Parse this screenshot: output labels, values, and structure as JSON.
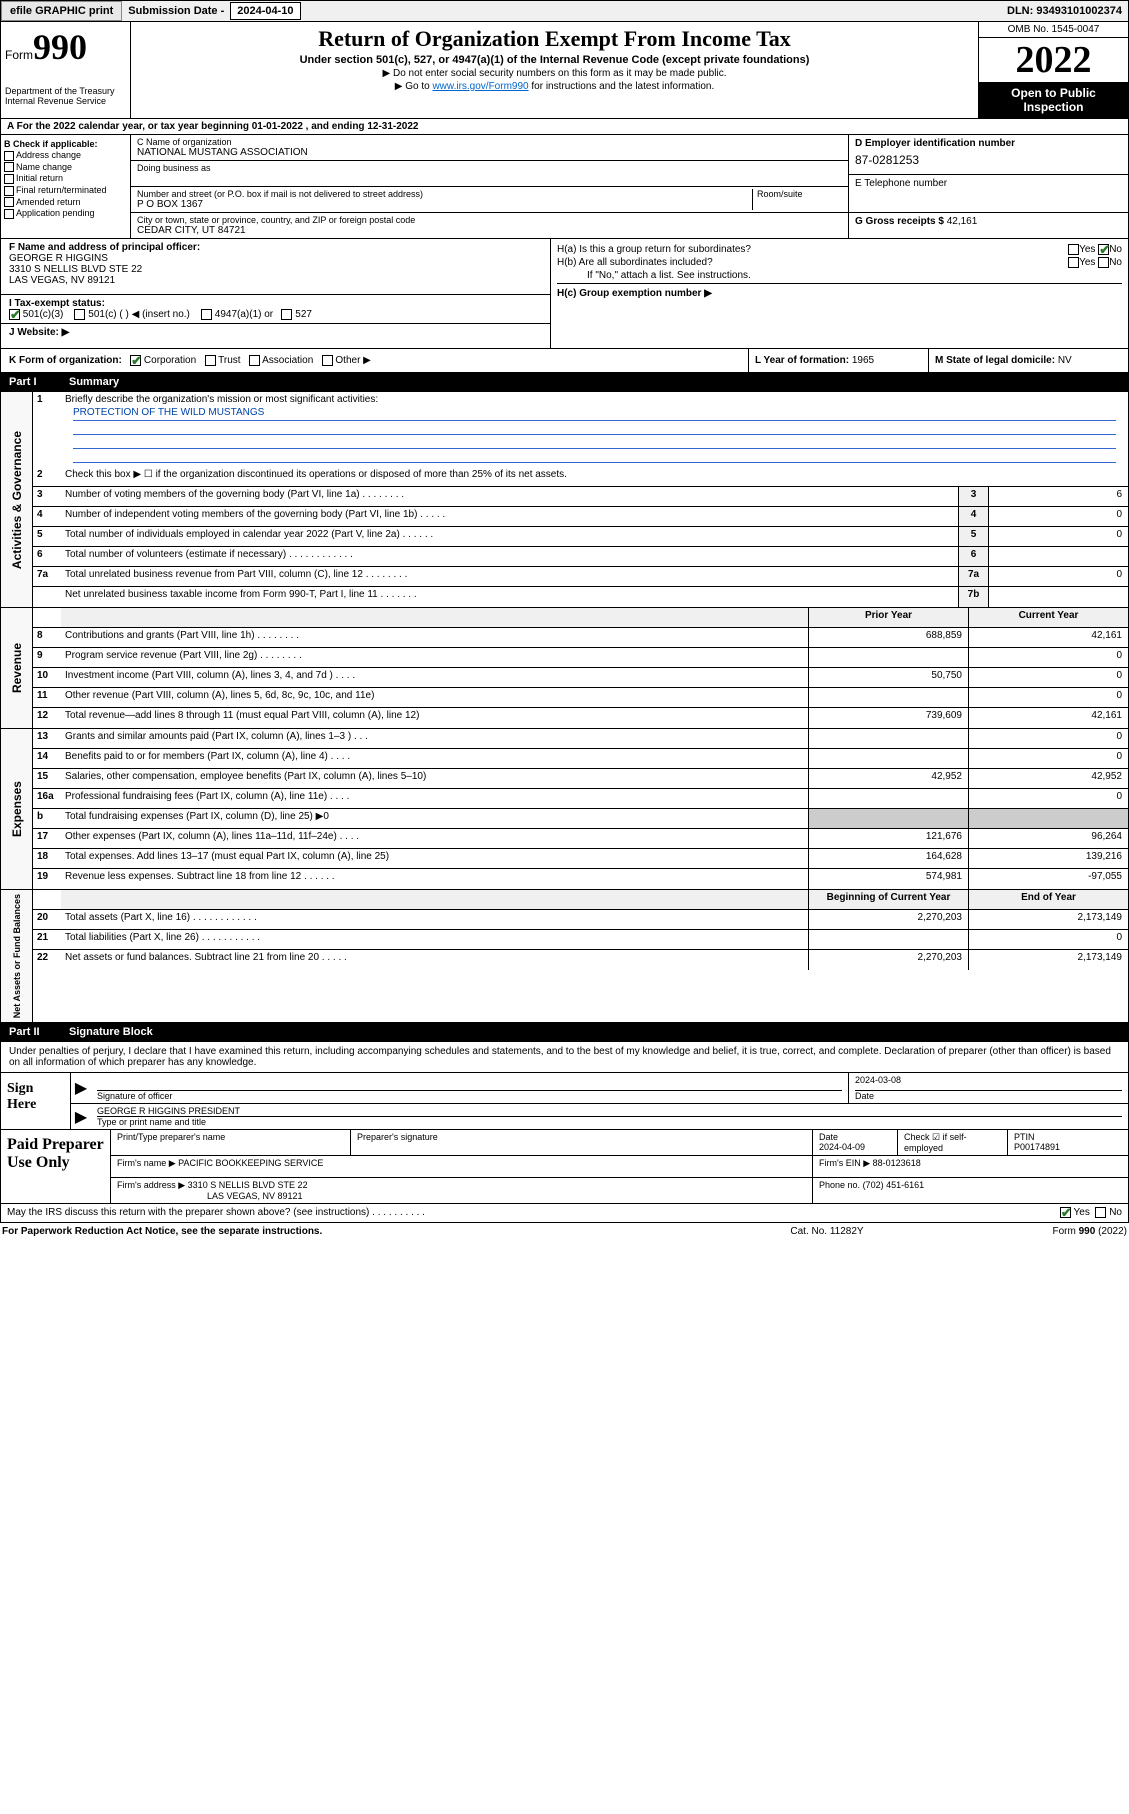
{
  "topbar": {
    "efile": "efile GRAPHIC print",
    "subdate_label": "Submission Date - ",
    "subdate": "2024-04-10",
    "dln": "DLN: 93493101002374"
  },
  "header": {
    "form_label": "Form",
    "form_num": "990",
    "dept": "Department of the Treasury\nInternal Revenue Service",
    "title": "Return of Organization Exempt From Income Tax",
    "sub1": "Under section 501(c), 527, or 4947(a)(1) of the Internal Revenue Code (except private foundations)",
    "sub2a": "▶ Do not enter social security numbers on this form as it may be made public.",
    "sub2b_pre": "▶ Go to ",
    "sub2b_link": "www.irs.gov/Form990",
    "sub2b_post": " for instructions and the latest information.",
    "omb": "OMB No. 1545-0047",
    "year": "2022",
    "open": "Open to Public Inspection"
  },
  "row_a": "A For the 2022 calendar year, or tax year beginning 01-01-2022    , and ending 12-31-2022",
  "box_b": {
    "label": "B Check if applicable:",
    "items": [
      "Address change",
      "Name change",
      "Initial return",
      "Final return/terminated",
      "Amended return",
      "Application pending"
    ]
  },
  "box_c": {
    "name_label": "C Name of organization",
    "name": "NATIONAL MUSTANG ASSOCIATION",
    "dba_label": "Doing business as",
    "dba": "",
    "street_label": "Number and street (or P.O. box if mail is not delivered to street address)",
    "room_label": "Room/suite",
    "street": "P O BOX 1367",
    "city_label": "City or town, state or province, country, and ZIP or foreign postal code",
    "city": "CEDAR CITY, UT  84721"
  },
  "box_d": {
    "label": "D Employer identification number",
    "ein": "87-0281253"
  },
  "box_e": {
    "label": "E Telephone number",
    "phone": ""
  },
  "box_g": {
    "label": "G Gross receipts $",
    "val": "42,161"
  },
  "box_f": {
    "label": "F  Name and address of principal officer:",
    "name": "GEORGE R HIGGINS",
    "addr1": "3310 S NELLIS BLVD STE 22",
    "addr2": "LAS VEGAS, NV  89121"
  },
  "box_i": {
    "label": "I    Tax-exempt status:",
    "opts": [
      "501(c)(3)",
      "501(c) (   ) ◀ (insert no.)",
      "4947(a)(1) or",
      "527"
    ]
  },
  "box_j": {
    "label": "J    Website: ▶"
  },
  "box_h": {
    "a_label": "H(a)  Is this a group return for subordinates?",
    "b_label": "H(b)  Are all subordinates included?",
    "b_note": "If \"No,\" attach a list. See instructions.",
    "c_label": "H(c)  Group exemption number ▶",
    "yes": "Yes",
    "no": "No"
  },
  "box_k": {
    "label": "K Form of organization:",
    "opts": [
      "Corporation",
      "Trust",
      "Association",
      "Other ▶"
    ]
  },
  "box_l": {
    "label": "L Year of formation:",
    "val": "1965"
  },
  "box_m": {
    "label": "M State of legal domicile:",
    "val": "NV"
  },
  "part1": {
    "num": "Part I",
    "title": "Summary"
  },
  "summary": {
    "gov_label": "Activities & Governance",
    "rev_label": "Revenue",
    "exp_label": "Expenses",
    "na_label": "Net Assets or Fund Balances",
    "l1_label": "Briefly describe the organization's mission or most significant activities:",
    "l1_val": "PROTECTION OF THE WILD MUSTANGS",
    "l2": "Check this box ▶ ☐  if the organization discontinued its operations or disposed of more than 25% of its net assets.",
    "rows_simple": [
      {
        "n": "3",
        "d": "Number of voting members of the governing body (Part VI, line 1a)   .    .    .    .    .    .    .    .",
        "bn": "3",
        "bv": "6"
      },
      {
        "n": "4",
        "d": "Number of independent voting members of the governing body (Part VI, line 1b)   .    .    .    .    .",
        "bn": "4",
        "bv": "0"
      },
      {
        "n": "5",
        "d": "Total number of individuals employed in calendar year 2022 (Part V, line 2a)   .    .    .    .    .    .",
        "bn": "5",
        "bv": "0"
      },
      {
        "n": "6",
        "d": "Total number of volunteers (estimate if necessary)   .    .    .    .    .    .    .    .    .    .    .    .",
        "bn": "6",
        "bv": ""
      },
      {
        "n": "7a",
        "d": "Total unrelated business revenue from Part VIII, column (C), line 12   .    .    .    .    .    .    .    .",
        "bn": "7a",
        "bv": "0"
      },
      {
        "n": "",
        "d": "Net unrelated business taxable income from Form 990-T, Part I, line 11   .    .    .    .    .    .    .",
        "bn": "7b",
        "bv": ""
      }
    ],
    "col_py": "Prior Year",
    "col_cy": "Current Year",
    "rows_rev": [
      {
        "n": "8",
        "d": "Contributions and grants (Part VIII, line 1h)   .    .    .    .    .    .    .    .",
        "py": "688,859",
        "cy": "42,161"
      },
      {
        "n": "9",
        "d": "Program service revenue (Part VIII, line 2g)   .    .    .    .    .    .    .    .",
        "py": "",
        "cy": "0"
      },
      {
        "n": "10",
        "d": "Investment income (Part VIII, column (A), lines 3, 4, and 7d )   .    .    .    .",
        "py": "50,750",
        "cy": "0"
      },
      {
        "n": "11",
        "d": "Other revenue (Part VIII, column (A), lines 5, 6d, 8c, 9c, 10c, and 11e)",
        "py": "",
        "cy": "0"
      },
      {
        "n": "12",
        "d": "Total revenue—add lines 8 through 11 (must equal Part VIII, column (A), line 12)",
        "py": "739,609",
        "cy": "42,161"
      }
    ],
    "rows_exp": [
      {
        "n": "13",
        "d": "Grants and similar amounts paid (Part IX, column (A), lines 1–3 )   .    .    .",
        "py": "",
        "cy": "0"
      },
      {
        "n": "14",
        "d": "Benefits paid to or for members (Part IX, column (A), line 4)   .    .    .    .",
        "py": "",
        "cy": "0"
      },
      {
        "n": "15",
        "d": "Salaries, other compensation, employee benefits (Part IX, column (A), lines 5–10)",
        "py": "42,952",
        "cy": "42,952"
      },
      {
        "n": "16a",
        "d": "Professional fundraising fees (Part IX, column (A), line 11e)   .    .    .    .",
        "py": "",
        "cy": "0"
      },
      {
        "n": "b",
        "d": "Total fundraising expenses (Part IX, column (D), line 25) ▶0",
        "py": "__shade__",
        "cy": "__shade__"
      },
      {
        "n": "17",
        "d": "Other expenses (Part IX, column (A), lines 11a–11d, 11f–24e)   .    .    .    .",
        "py": "121,676",
        "cy": "96,264"
      },
      {
        "n": "18",
        "d": "Total expenses. Add lines 13–17 (must equal Part IX, column (A), line 25)",
        "py": "164,628",
        "cy": "139,216"
      },
      {
        "n": "19",
        "d": "Revenue less expenses. Subtract line 18 from line 12   .    .    .    .    .    .",
        "py": "574,981",
        "cy": "-97,055"
      }
    ],
    "col_boy": "Beginning of Current Year",
    "col_eoy": "End of Year",
    "rows_na": [
      {
        "n": "20",
        "d": "Total assets (Part X, line 16)   .    .    .    .    .    .    .    .    .    .    .    .",
        "py": "2,270,203",
        "cy": "2,173,149"
      },
      {
        "n": "21",
        "d": "Total liabilities (Part X, line 26)   .    .    .    .    .    .    .    .    .    .    .",
        "py": "",
        "cy": "0"
      },
      {
        "n": "22",
        "d": "Net assets or fund balances. Subtract line 21 from line 20   .    .    .    .    .",
        "py": "2,270,203",
        "cy": "2,173,149"
      }
    ]
  },
  "part2": {
    "num": "Part II",
    "title": "Signature Block"
  },
  "sig": {
    "intro": "Under penalties of perjury, I declare that I have examined this return, including accompanying schedules and statements, and to the best of my knowledge and belief, it is true, correct, and complete. Declaration of preparer (other than officer) is based on all information of which preparer has any knowledge.",
    "sign_here": "Sign Here",
    "sig_label": "Signature of officer",
    "date_label": "Date",
    "date": "2024-03-08",
    "name": "GEORGE R HIGGINS  PRESIDENT",
    "name_label": "Type or print name and title"
  },
  "paid": {
    "label": "Paid Preparer Use Only",
    "h1": "Print/Type preparer's name",
    "h2": "Preparer's signature",
    "h3": "Date",
    "date": "2024-04-09",
    "h4": "Check ☑ if self-employed",
    "h5": "PTIN",
    "ptin": "P00174891",
    "firm_name_l": "Firm's name     ▶",
    "firm_name": "PACIFIC BOOKKEEPING SERVICE",
    "firm_ein_l": "Firm's EIN ▶",
    "firm_ein": "88-0123618",
    "firm_addr_l": "Firm's address ▶",
    "firm_addr1": "3310 S NELLIS BLVD STE 22",
    "firm_addr2": "LAS VEGAS, NV  89121",
    "phone_l": "Phone no.",
    "phone": "(702) 451-6161"
  },
  "footer": {
    "discuss": "May the IRS discuss this return with the preparer shown above? (see instructions)   .    .    .    .    .    .    .    .    .    .",
    "yes": "Yes",
    "no": "No",
    "paperwork": "For Paperwork Reduction Act Notice, see the separate instructions.",
    "cat": "Cat. No. 11282Y",
    "form": "Form 990 (2022)"
  }
}
